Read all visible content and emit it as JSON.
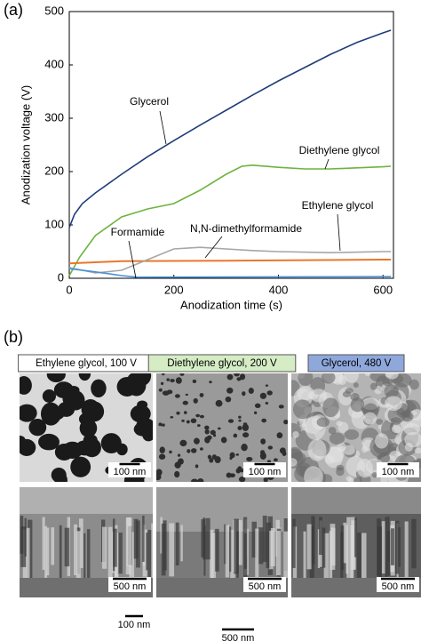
{
  "chart_data": {
    "type": "line",
    "panel_label": "(a)",
    "x_label": "Anodization time (s)",
    "y_label": "Anodization voltage (V)",
    "xlim": [
      0,
      620
    ],
    "ylim": [
      0,
      500
    ],
    "xticks": [
      0,
      200,
      400,
      600
    ],
    "yticks": [
      0,
      100,
      200,
      300,
      400,
      500
    ],
    "series": [
      {
        "name": "Glycerol",
        "color": "#1f3d7a",
        "x": [
          0,
          10,
          25,
          50,
          100,
          150,
          200,
          250,
          300,
          350,
          400,
          450,
          500,
          550,
          600,
          615
        ],
        "values": [
          95,
          120,
          140,
          160,
          195,
          228,
          258,
          287,
          315,
          343,
          370,
          395,
          420,
          442,
          460,
          465
        ]
      },
      {
        "name": "Diethylene glycol",
        "color": "#6db33f",
        "x": [
          0,
          20,
          50,
          100,
          150,
          200,
          250,
          300,
          330,
          350,
          400,
          450,
          500,
          550,
          600,
          615
        ],
        "values": [
          5,
          40,
          80,
          115,
          130,
          140,
          165,
          195,
          210,
          212,
          208,
          205,
          205,
          207,
          209,
          210
        ]
      },
      {
        "name": "Ethylene glycol",
        "color": "#e8772e",
        "x": [
          0,
          100,
          300,
          600,
          615
        ],
        "values": [
          28,
          32,
          33,
          35,
          35
        ]
      },
      {
        "name": "N,N-dimethylformamide",
        "color": "#a6a6a6",
        "x": [
          0,
          50,
          100,
          150,
          200,
          250,
          300,
          350,
          400,
          500,
          600,
          615
        ],
        "values": [
          20,
          10,
          15,
          35,
          55,
          58,
          55,
          52,
          50,
          48,
          50,
          50
        ]
      },
      {
        "name": "Formamide",
        "color": "#4a90d9",
        "x": [
          0,
          50,
          100,
          130,
          600,
          615
        ],
        "values": [
          18,
          12,
          5,
          2,
          3,
          3
        ]
      }
    ]
  },
  "micrographs": {
    "panel_label": "(b)",
    "columns": [
      {
        "label": "Ethylene glycol, 100 V",
        "top_scale": "100 nm",
        "bottom_scale": "500 nm"
      },
      {
        "label": "Diethylene glycol, 200 V",
        "top_scale": "100 nm",
        "bottom_scale": "500 nm"
      },
      {
        "label": "Glycerol, 480 V",
        "top_scale": "100 nm",
        "bottom_scale": "500 nm"
      }
    ],
    "legend_scales": [
      "100 nm",
      "500 nm"
    ]
  }
}
